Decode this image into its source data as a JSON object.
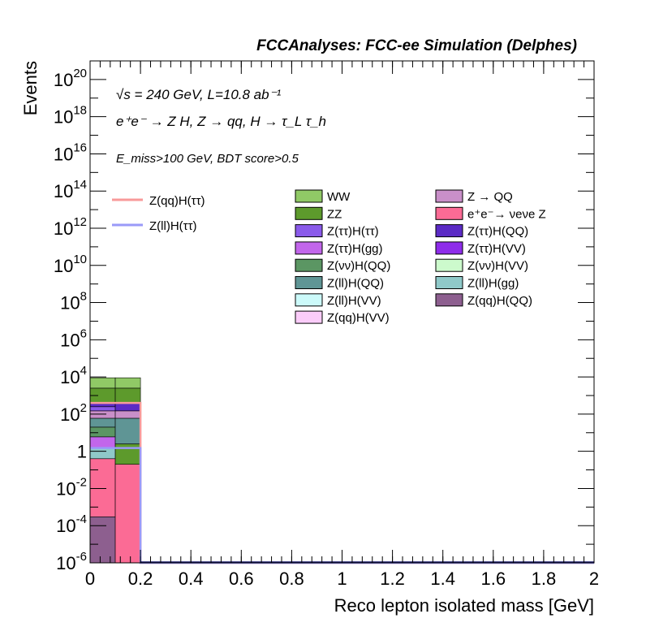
{
  "chart_data": {
    "type": "bar",
    "title": "FCCAnalyses: FCC-ee Simulation (Delphes)",
    "annotations": {
      "line1": "√s = 240 GeV, L=10.8 ab⁻¹",
      "line2": "e⁺e⁻ → Z H, Z → qq, H → τ_L τ_h",
      "line3": "E_miss>100 GeV, BDT score>0.5"
    },
    "xlabel": "Reco lepton isolated mass [GeV]",
    "ylabel": "Events",
    "xlim": [
      0,
      2
    ],
    "ylim": [
      1e-06,
      1e+21
    ],
    "yscale": "log",
    "grid": false,
    "x_ticks": [
      "0",
      "0.2",
      "0.4",
      "0.6",
      "0.8",
      "1",
      "1.2",
      "1.4",
      "1.6",
      "1.8",
      "2"
    ],
    "y_ticks": [
      {
        "value": 1e-06,
        "base": "10",
        "exp": "-6"
      },
      {
        "value": 0.0001,
        "base": "10",
        "exp": "-4"
      },
      {
        "value": 0.01,
        "base": "10",
        "exp": "-2"
      },
      {
        "value": 1,
        "base": "1",
        "exp": ""
      },
      {
        "value": 100,
        "base": "10",
        "exp": "2"
      },
      {
        "value": 10000,
        "base": "10",
        "exp": "4"
      },
      {
        "value": 1000000,
        "base": "10",
        "exp": "6"
      },
      {
        "value": 100000000,
        "base": "10",
        "exp": "8"
      },
      {
        "value": 10000000000,
        "base": "10",
        "exp": "10"
      },
      {
        "value": 1000000000000,
        "base": "10",
        "exp": "12"
      },
      {
        "value": 100000000000000,
        "base": "10",
        "exp": "14"
      },
      {
        "value": 10000000000000000,
        "base": "10",
        "exp": "16"
      },
      {
        "value": 1000000000000000000,
        "base": "10",
        "exp": "18"
      },
      {
        "value": 100000000000000000000,
        "base": "10",
        "exp": "20"
      }
    ],
    "bins": [
      {
        "x0": 0.0,
        "x1": 0.1,
        "layers": [
          {
            "name": "Z(qq)H(QQ)",
            "bottom": 1e-06,
            "top": 0.0003,
            "color": "#8d5f8f"
          },
          {
            "name": "e⁺e⁻→ νeνe Z",
            "bottom": 0.0003,
            "top": 0.4,
            "color": "#fb6b95"
          },
          {
            "name": "Z(ll)H(gg)",
            "bottom": 0.4,
            "top": 1.6,
            "color": "#8fc9c9"
          },
          {
            "name": "Z(ττ)H(gg)",
            "bottom": 1.6,
            "top": 6,
            "color": "#c266eb"
          },
          {
            "name": "Z(νν)H(QQ)",
            "bottom": 6,
            "top": 20,
            "color": "#5b9663"
          },
          {
            "name": "Z(ll)H(QQ)",
            "bottom": 20,
            "top": 60,
            "color": "#5f9595"
          },
          {
            "name": "Z → QQ",
            "bottom": 60,
            "top": 150,
            "color": "#c98fc9"
          },
          {
            "name": "Z(ττ)H(ττ)",
            "bottom": 150,
            "top": 250,
            "color": "#8a5aea"
          },
          {
            "name": "Z(ττ)H(QQ)",
            "bottom": 250,
            "top": 400,
            "color": "#5b2bc5"
          },
          {
            "name": "ZZ",
            "bottom": 400,
            "top": 2500,
            "color": "#5d9a2c"
          },
          {
            "name": "WW",
            "bottom": 2500,
            "top": 9000,
            "color": "#90c966"
          }
        ]
      },
      {
        "x0": 0.1,
        "x1": 0.2,
        "layers": [
          {
            "name": "e⁺e⁻→ νeνe Z",
            "bottom": 1e-06,
            "top": 0.2,
            "color": "#fb6b95"
          },
          {
            "name": "ZZ",
            "bottom": 0.2,
            "top": 2.5,
            "color": "#5d9a2c"
          },
          {
            "name": "Z(ll)H(QQ)",
            "bottom": 2.5,
            "top": 60,
            "color": "#5f9595"
          },
          {
            "name": "Z → QQ",
            "bottom": 60,
            "top": 150,
            "color": "#c98fc9"
          },
          {
            "name": "Z(ττ)H(QQ)",
            "bottom": 150,
            "top": 400,
            "color": "#5b2bc5"
          },
          {
            "name": "ZZ",
            "bottom": 400,
            "top": 2500,
            "color": "#5d9a2c"
          },
          {
            "name": "WW",
            "bottom": 2500,
            "top": 9000,
            "color": "#90c966"
          }
        ]
      }
    ],
    "lines": [
      {
        "name": "Z(qq)H(ττ)",
        "color": "#f89a9a",
        "points": [
          [
            0,
            400
          ],
          [
            0.2,
            400
          ],
          [
            0.2,
            1e-06
          ],
          [
            2,
            1e-06
          ]
        ]
      },
      {
        "name": "Z(ll)H(ττ)",
        "color": "#9a9af8",
        "points": [
          [
            0,
            1.5
          ],
          [
            0.2,
            1.5
          ],
          [
            0.2,
            1e-06
          ],
          [
            2,
            1e-06
          ]
        ]
      }
    ],
    "legend_lines": [
      {
        "name": "Z(qq)H(ττ)",
        "color": "#f89a9a"
      },
      {
        "name": "Z(ll)H(ττ)",
        "color": "#9a9af8"
      }
    ],
    "legend_col1": [
      {
        "name": "WW",
        "color": "#90c966"
      },
      {
        "name": "ZZ",
        "color": "#5d9a2c"
      },
      {
        "name": "Z(ττ)H(ττ)",
        "color": "#8a5aea"
      },
      {
        "name": "Z(ττ)H(gg)",
        "color": "#c266eb"
      },
      {
        "name": "Z(νν)H(QQ)",
        "color": "#5b9663"
      },
      {
        "name": "Z(ll)H(QQ)",
        "color": "#5f9595"
      },
      {
        "name": "Z(ll)H(VV)",
        "color": "#ccfafa"
      },
      {
        "name": "Z(qq)H(VV)",
        "color": "#fbccf9"
      }
    ],
    "legend_col2": [
      {
        "name": "Z → QQ",
        "color": "#c98fc9"
      },
      {
        "name": "e⁺e⁻→ νeνe Z",
        "color": "#fb6b95"
      },
      {
        "name": "Z(ττ)H(QQ)",
        "color": "#5b2bc5"
      },
      {
        "name": "Z(ττ)H(VV)",
        "color": "#8e2cea"
      },
      {
        "name": "Z(νν)H(VV)",
        "color": "#ccfacc"
      },
      {
        "name": "Z(ll)H(gg)",
        "color": "#8fc9c9"
      },
      {
        "name": "Z(qq)H(QQ)",
        "color": "#8d5f8f"
      }
    ]
  }
}
